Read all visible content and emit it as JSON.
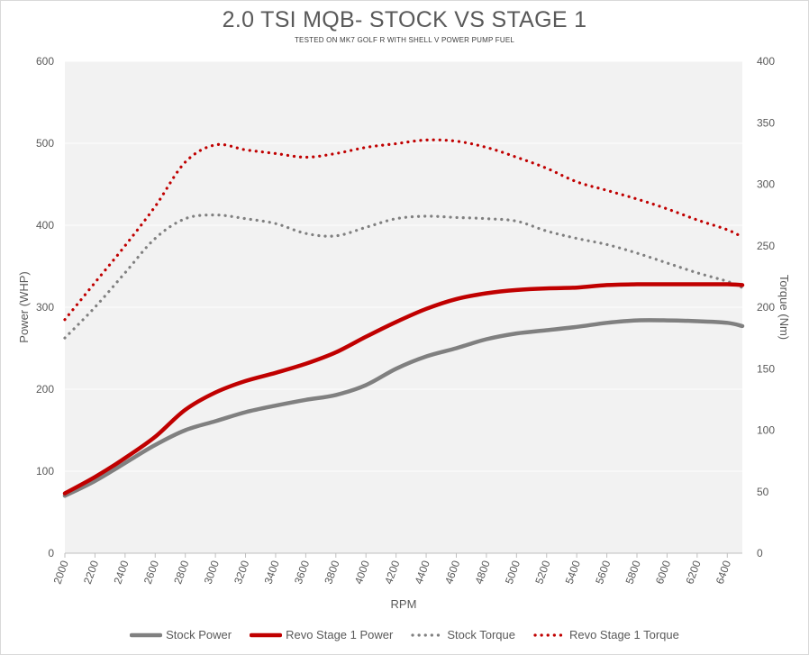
{
  "chart_data": {
    "type": "line",
    "title": "2.0 TSI MQB- STOCK VS STAGE 1",
    "subtitle": "TESTED ON MK7 GOLF R WITH SHELL V POWER PUMP FUEL",
    "xlabel": "RPM",
    "ylabel": "Power (WHP)",
    "y2label": "Torque (Nm)",
    "xlim": [
      2000,
      6500
    ],
    "ylim": [
      0,
      600
    ],
    "y2lim": [
      0,
      400
    ],
    "x_ticks": [
      2000,
      2200,
      2400,
      2600,
      2800,
      3000,
      3200,
      3400,
      3600,
      3800,
      4000,
      4200,
      4400,
      4600,
      4800,
      5000,
      5200,
      5400,
      5600,
      5800,
      6000,
      6200,
      6400
    ],
    "y_ticks": [
      0,
      100,
      200,
      300,
      400,
      500,
      600
    ],
    "y2_ticks": [
      0,
      50,
      100,
      150,
      200,
      250,
      300,
      350,
      400
    ],
    "grid": true,
    "legend_position": "bottom",
    "x": [
      2000,
      2200,
      2400,
      2600,
      2800,
      3000,
      3200,
      3400,
      3600,
      3800,
      4000,
      4200,
      4400,
      4600,
      4800,
      5000,
      5200,
      5400,
      5600,
      5800,
      6000,
      6200,
      6400,
      6500
    ],
    "series": [
      {
        "name": "Stock Power",
        "axis": "left",
        "style": "solid",
        "color": "#808080",
        "values": [
          70,
          88,
          110,
          132,
          150,
          161,
          172,
          180,
          187,
          193,
          205,
          225,
          240,
          250,
          261,
          268,
          272,
          276,
          281,
          284,
          284,
          283,
          281,
          277
        ]
      },
      {
        "name": "Revo Stage 1 Power",
        "axis": "left",
        "style": "solid",
        "color": "#c00000",
        "values": [
          73,
          93,
          116,
          142,
          175,
          196,
          210,
          220,
          231,
          245,
          264,
          282,
          298,
          310,
          317,
          321,
          323,
          324,
          327,
          328,
          328,
          328,
          328,
          327
        ]
      },
      {
        "name": "Stock Torque",
        "axis": "right",
        "style": "dotted",
        "color": "#808080",
        "values": [
          175,
          200,
          228,
          256,
          272,
          275,
          272,
          268,
          260,
          258,
          265,
          272,
          274,
          273,
          272,
          270,
          262,
          256,
          251,
          244,
          236,
          228,
          221,
          216
        ]
      },
      {
        "name": "Revo Stage 1 Torque",
        "axis": "right",
        "style": "dotted",
        "color": "#c00000",
        "values": [
          190,
          220,
          250,
          282,
          318,
          332,
          328,
          325,
          322,
          325,
          330,
          333,
          336,
          335,
          330,
          322,
          313,
          302,
          295,
          288,
          280,
          271,
          263,
          257
        ]
      }
    ]
  }
}
